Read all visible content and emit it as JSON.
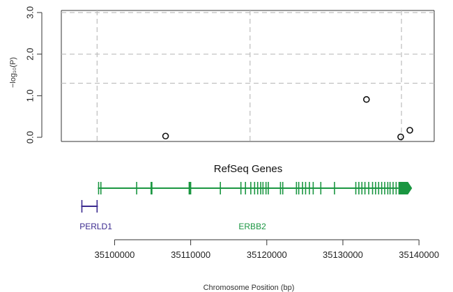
{
  "chart_data": {
    "type": "scatter",
    "ylabel": "−log₁₀(P)",
    "xlabel": "Chromosome Position (bp)",
    "xlim": [
      35093000,
      35142000
    ],
    "ylim": [
      -0.1,
      3.05
    ],
    "y_ticks": [
      {
        "value": 0.0,
        "label": "0.0"
      },
      {
        "value": 1.0,
        "label": "1.0"
      },
      {
        "value": 2.0,
        "label": "2.0"
      },
      {
        "value": 3.0,
        "label": "3.0"
      }
    ],
    "x_ticks": [
      {
        "value": 35100000,
        "label": "35100000"
      },
      {
        "value": 35110000,
        "label": "35110000"
      },
      {
        "value": 35120000,
        "label": "35120000"
      },
      {
        "value": 35130000,
        "label": "35130000"
      },
      {
        "value": 35140000,
        "label": "35140000"
      }
    ],
    "grid_h": [
      1.3,
      2.0,
      3.0
    ],
    "grid_v": [
      35097700,
      35117800,
      35137700
    ],
    "points": [
      {
        "x": 35106700,
        "y": 0.03
      },
      {
        "x": 35133100,
        "y": 0.91
      },
      {
        "x": 35137600,
        "y": 0.01
      },
      {
        "x": 35138800,
        "y": 0.17
      }
    ],
    "track_title": "RefSeq Genes",
    "genes": [
      {
        "name": "ERBB2",
        "color": "#1a9641",
        "start": 35097800,
        "end": 35137300,
        "arrow_end": 35139100,
        "strand": "+",
        "exons": [
          35097900,
          35098200,
          35102900,
          35104800,
          35104900,
          35109800,
          35109900,
          35110000,
          35113900,
          35116600,
          35117200,
          35117900,
          35118400,
          35118800,
          35119200,
          35119500,
          35119900,
          35120200,
          35121800,
          35122100,
          35123900,
          35124200,
          35124700,
          35125100,
          35125600,
          35126100,
          35127100,
          35128900,
          35131700,
          35132100,
          35132500,
          35132900,
          35133400,
          35133900,
          35134300,
          35134700,
          35135100,
          35135500,
          35135900,
          35136200,
          35136600,
          35137000
        ],
        "label_x": 35116300
      },
      {
        "name": "PERLD1",
        "color": "#3b2a8f",
        "start": 35095600,
        "end": 35097800,
        "strand": "-",
        "exons": [
          35095700,
          35097700
        ],
        "label_x": 35095400
      }
    ]
  }
}
